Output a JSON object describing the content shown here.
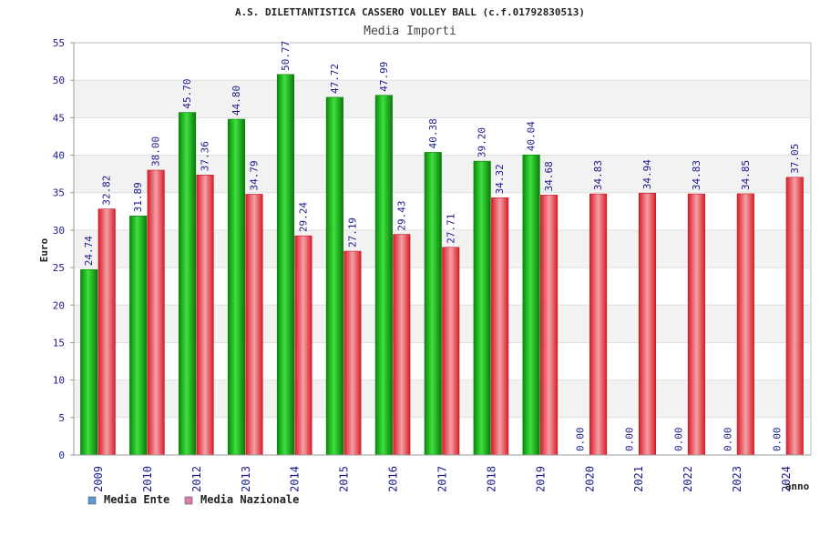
{
  "chart_data": {
    "type": "bar",
    "title": "A.S. DILETTANTISTICA CASSERO VOLLEY BALL (c.f.01792830513)",
    "subtitle": "Media Importi",
    "xlabel": "anno",
    "ylabel": "Euro",
    "ylim": [
      0,
      55
    ],
    "yticks": [
      0,
      5,
      10,
      15,
      20,
      25,
      30,
      35,
      40,
      45,
      50,
      55
    ],
    "grid": true,
    "legend_position": "bottom-left",
    "categories": [
      "2009",
      "2010",
      "2012",
      "2013",
      "2014",
      "2015",
      "2016",
      "2017",
      "2018",
      "2019",
      "2020",
      "2021",
      "2022",
      "2023",
      "2024"
    ],
    "series": [
      {
        "name": "Media Ente",
        "color": "#1fb21f",
        "legend_color": "#5b9bd5",
        "values": [
          24.74,
          31.89,
          45.7,
          44.8,
          50.77,
          47.72,
          47.99,
          40.38,
          39.2,
          40.04,
          0.0,
          0.0,
          0.0,
          0.0,
          0.0
        ],
        "labels": [
          "24.74",
          "31.89",
          "45.70",
          "44.80",
          "50.77",
          "47.72",
          "47.99",
          "40.38",
          "39.20",
          "40.04",
          "0.00",
          "0.00",
          "0.00",
          "0.00",
          "0.00"
        ]
      },
      {
        "name": "Media Nazionale",
        "color": "#e8323c",
        "legend_color": "#d97fae",
        "values": [
          32.82,
          38.0,
          37.36,
          34.79,
          29.24,
          27.19,
          29.43,
          27.71,
          34.32,
          34.68,
          34.83,
          34.94,
          34.83,
          34.85,
          37.05
        ],
        "labels": [
          "32.82",
          "38.00",
          "37.36",
          "34.79",
          "29.24",
          "27.19",
          "29.43",
          "27.71",
          "34.32",
          "34.68",
          "34.83",
          "34.94",
          "34.83",
          "34.85",
          "37.05"
        ]
      }
    ]
  }
}
